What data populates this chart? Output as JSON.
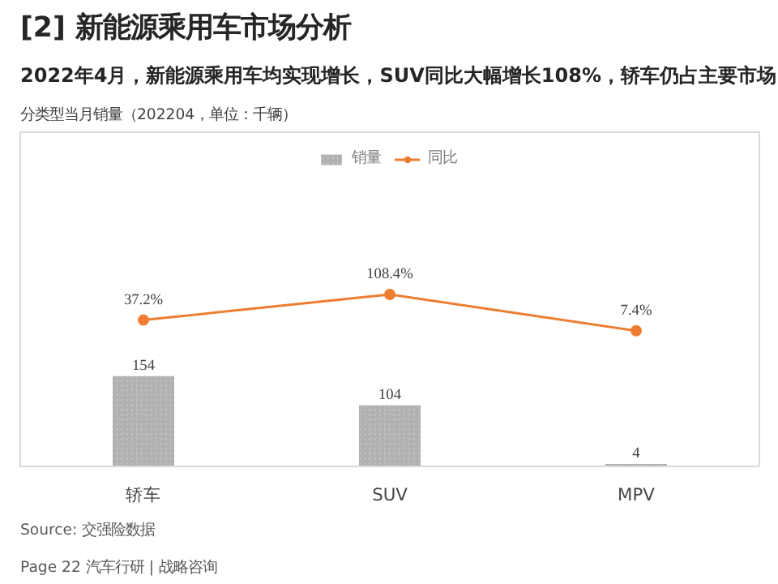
{
  "chart_data": {
    "type": "bar",
    "title": "[2] 新能源乘用车市场分析",
    "subtitle": "2022年4月，新能源乘用车均实现增长，SUV同比大幅增长108%，轿车仍占主要市场",
    "categories": [
      "轿车",
      "SUV",
      "MPV"
    ],
    "series": [
      {
        "name": "销量",
        "color": "#bfbfbf",
        "values": [
          154,
          104,
          4
        ],
        "value_labels": [
          "154",
          "104",
          "4"
        ]
      },
      {
        "name": "同比",
        "type": "line",
        "axis": "y2",
        "color": "#ed7d31",
        "marker": "circle",
        "values": [
          37.2,
          108.4,
          7.4
        ],
        "value_labels": [
          "37.2%",
          "108.4%",
          "7.4%"
        ]
      }
    ],
    "ylim": [
      0,
      570
    ],
    "y2lim": [
      -370,
      560
    ],
    "tick_labels": "x",
    "legend": "top",
    "annotations": [
      "分类型当月销量（202204，单位：千辆）",
      "Source: 交强险数据",
      "Page 22",
      "汽车行研 | 战略咨询"
    ]
  }
}
